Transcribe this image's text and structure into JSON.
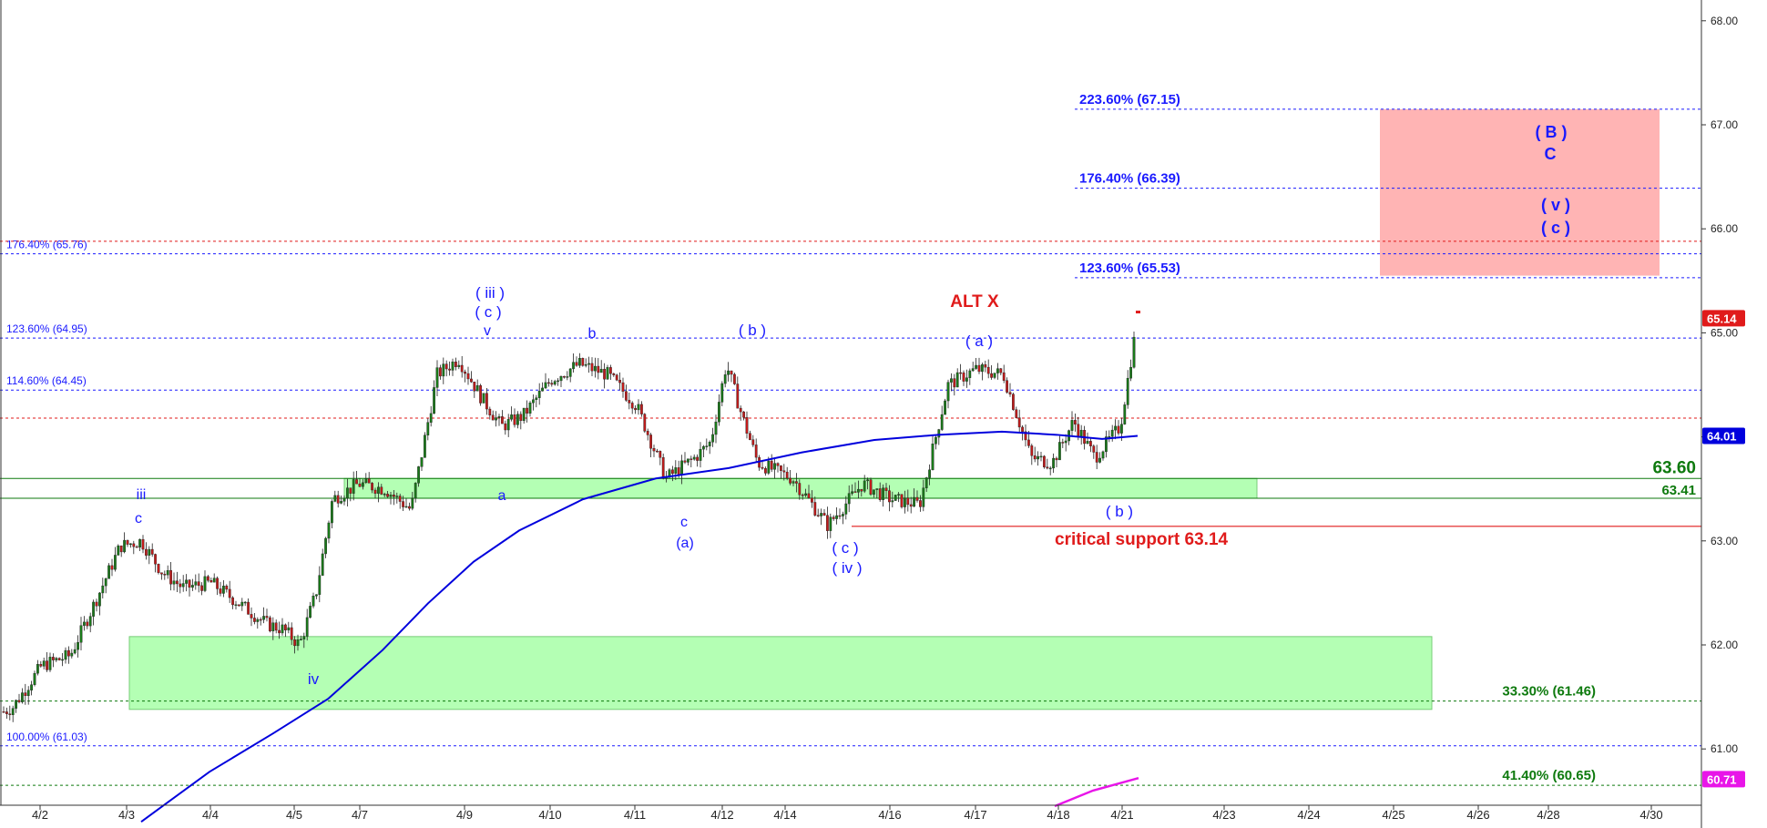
{
  "chart_data": {
    "type": "candlestick",
    "yaxis": {
      "range": [
        60.45,
        68.12
      ],
      "ticks": [
        "68.00",
        "67.00",
        "66.00",
        "65.00",
        "64.00",
        "63.00",
        "62.00",
        "61.00"
      ]
    },
    "xaxis": {
      "ticks": [
        "4/2",
        "4/3",
        "4/4",
        "4/5",
        "4/7",
        "4/9",
        "4/10",
        "4/11",
        "4/12",
        "4/14",
        "4/16",
        "4/17",
        "4/18",
        "4/21",
        "4/23",
        "4/24",
        "4/25",
        "4/26",
        "4/28",
        "4/30"
      ]
    },
    "last_price": "65.14",
    "moving_average_last": "64.01",
    "lower_line_last": "60.71",
    "price_path": [
      [
        "4/2",
        61.4
      ],
      [
        "4/2",
        61.8
      ],
      [
        "4/2",
        61.9
      ],
      [
        "4/3",
        62.5
      ],
      [
        "4/3",
        62.95
      ],
      [
        "4/3",
        63.0
      ],
      [
        "4/3",
        62.7
      ],
      [
        "4/4",
        62.55
      ],
      [
        "4/4",
        62.6
      ],
      [
        "4/4",
        62.4
      ],
      [
        "4/5",
        62.2
      ],
      [
        "4/5",
        62.15
      ],
      [
        "4/5",
        62.0
      ],
      [
        "4/5",
        62.5
      ],
      [
        "4/7",
        63.4
      ],
      [
        "4/7",
        63.55
      ],
      [
        "4/7",
        63.5
      ],
      [
        "4/7",
        63.3
      ],
      [
        "4/9",
        64.6
      ],
      [
        "4/9",
        64.75
      ],
      [
        "4/9",
        64.4
      ],
      [
        "4/9",
        64.1
      ],
      [
        "4/10",
        64.2
      ],
      [
        "4/10",
        64.55
      ],
      [
        "4/10",
        64.7
      ],
      [
        "4/11",
        64.6
      ],
      [
        "4/11",
        64.3
      ],
      [
        "4/11",
        63.6
      ],
      [
        "4/12",
        63.8
      ],
      [
        "4/12",
        63.95
      ],
      [
        "4/12",
        64.7
      ],
      [
        "4/12",
        64.2
      ],
      [
        "4/14",
        63.75
      ],
      [
        "4/14",
        63.6
      ],
      [
        "4/14",
        63.15
      ],
      [
        "4/16",
        63.55
      ],
      [
        "4/16",
        63.4
      ],
      [
        "4/16",
        63.35
      ],
      [
        "4/17",
        64.5
      ],
      [
        "4/17",
        64.65
      ],
      [
        "4/17",
        64.6
      ],
      [
        "4/18",
        63.8
      ],
      [
        "4/18",
        63.75
      ],
      [
        "4/18",
        64.15
      ],
      [
        "4/21",
        63.8
      ],
      [
        "4/21",
        64.1
      ],
      [
        "4/21",
        64.55
      ],
      [
        "4/21",
        65.14
      ]
    ],
    "moving_average": [
      [
        "4/3",
        60.3
      ],
      [
        "4/5",
        61.45
      ],
      [
        "4/7",
        62.05
      ],
      [
        "4/9",
        62.85
      ],
      [
        "4/11",
        63.55
      ],
      [
        "4/14",
        63.85
      ],
      [
        "4/16",
        64.0
      ],
      [
        "4/17",
        64.04
      ],
      [
        "4/18",
        64.0
      ],
      [
        "4/21",
        64.01
      ]
    ],
    "support_zones": [
      {
        "from": 63.41,
        "to": 63.6
      },
      {
        "from": 61.38,
        "to": 62.08
      }
    ],
    "target_zone": {
      "from": 65.55,
      "to": 67.15
    },
    "levels": [
      {
        "label": "223.60% (67.15)",
        "value": 67.15,
        "color": "#1a1aff"
      },
      {
        "label": "176.40% (66.39)",
        "value": 66.39,
        "color": "#1a1aff"
      },
      {
        "label": "176.40% (65.76)",
        "value": 65.76,
        "color": "#1a1aff"
      },
      {
        "label": "123.60% (65.53)",
        "value": 65.53,
        "color": "#1a1aff"
      },
      {
        "label": "123.60% (64.95)",
        "value": 64.95,
        "color": "#1a1aff"
      },
      {
        "label": "114.60% (64.45)",
        "value": 64.45,
        "color": "#1a1aff"
      },
      {
        "label": "33.30% (61.46)",
        "value": 61.46,
        "color": "#0e7a0e"
      },
      {
        "label": "100.00% (61.03)",
        "value": 61.03,
        "color": "#1a1aff"
      },
      {
        "label": "41.40% (60.65)",
        "value": 60.65,
        "color": "#0e7a0e"
      }
    ],
    "horizontal_lines": [
      {
        "label": "63.60",
        "value": 63.6,
        "color": "#0e7a0e"
      },
      {
        "label": "63.41",
        "value": 63.41,
        "color": "#0e7a0e"
      },
      {
        "label": "critical support 63.14",
        "value": 63.14,
        "color": "#e01b1b"
      }
    ],
    "wave_labels": [
      {
        "text": "iii",
        "color": "#1a1aff"
      },
      {
        "text": "c",
        "color": "#1a1aff"
      },
      {
        "text": "iv",
        "color": "#1a1aff"
      },
      {
        "text": "( iii )",
        "color": "#1a1aff"
      },
      {
        "text": "( c )",
        "color": "#1a1aff"
      },
      {
        "text": "v",
        "color": "#1a1aff"
      },
      {
        "text": "a",
        "color": "#1a1aff"
      },
      {
        "text": "b",
        "color": "#1a1aff"
      },
      {
        "text": "c",
        "color": "#1a1aff"
      },
      {
        "text": "(a)",
        "color": "#1a1aff"
      },
      {
        "text": "( b )",
        "color": "#1a1aff"
      },
      {
        "text": "( c )",
        "color": "#1a1aff"
      },
      {
        "text": "( iv )",
        "color": "#1a1aff"
      },
      {
        "text": "ALT X",
        "color": "#e01b1b"
      },
      {
        "text": "( a )",
        "color": "#1a1aff"
      },
      {
        "text": "( b )",
        "color": "#1a1aff"
      },
      {
        "text": "( B )",
        "color": "#1a1aff"
      },
      {
        "text": "C",
        "color": "#1a1aff"
      },
      {
        "text": "( v )",
        "color": "#1a1aff"
      },
      {
        "text": "( c )",
        "color": "#1a1aff"
      }
    ]
  }
}
